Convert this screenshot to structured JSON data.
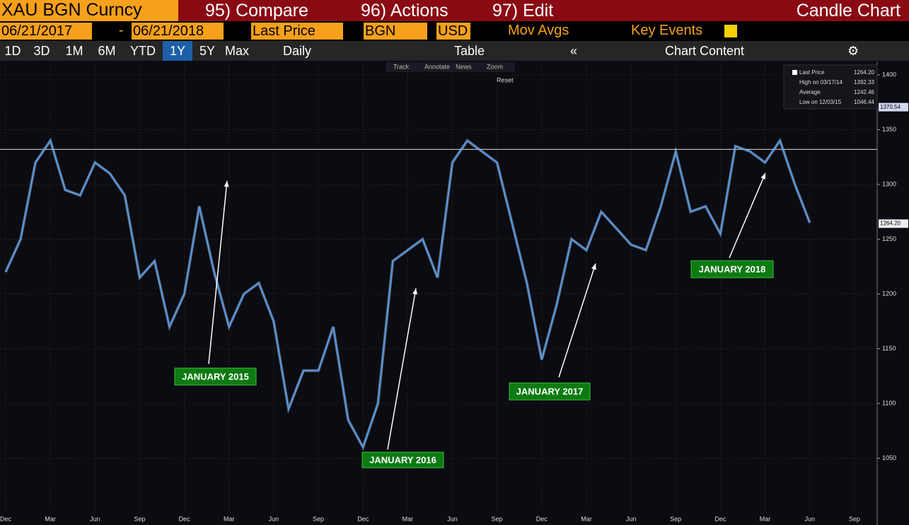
{
  "toolbar": {
    "security": "XAU BGN Curncy",
    "compare": "95) Compare",
    "actions": "96) Actions",
    "edit": "97) Edit",
    "chart_name": "Candle Chart"
  },
  "controls": {
    "start_date": "06/21/2017",
    "dash": "-",
    "end_date": "06/21/2018",
    "field": "Last Price",
    "source": "BGN",
    "currency": "USD",
    "mov_avgs": "Mov Avgs",
    "key_events": "Key Events"
  },
  "periods": [
    "1D",
    "3D",
    "1M",
    "6M",
    "YTD",
    "1Y",
    "5Y",
    "Max"
  ],
  "frequency": "Daily",
  "table": "Table",
  "chart_content": "Chart Content",
  "chart_tools": [
    "Track",
    "Annotate",
    "News",
    "Zoom"
  ],
  "reset": "Reset",
  "chart_data": {
    "type": "line",
    "categories": [
      "Dec",
      null,
      null,
      "Mar",
      null,
      null,
      "Jun",
      null,
      null,
      "Sep",
      null,
      null,
      "Dec",
      null,
      null,
      "Mar",
      null,
      null,
      "Jun",
      null,
      null,
      "Sep",
      null,
      null,
      "Dec",
      null,
      null,
      "Mar",
      null,
      null,
      "Jun",
      null,
      null,
      "Sep",
      null,
      null,
      "Dec",
      null,
      null,
      "Mar",
      null,
      null,
      "Jun",
      null,
      null,
      "Sep",
      null,
      null,
      "Dec",
      null,
      null,
      "Mar",
      null,
      null,
      "Jun",
      null,
      null,
      "Sep"
    ],
    "series": [
      {
        "name": "Last Price",
        "color": "#4f9bea",
        "values": [
          1220,
          1250,
          1320,
          1340,
          1295,
          1290,
          1320,
          1310,
          1290,
          1215,
          1230,
          1170,
          1200,
          1280,
          1220,
          1170,
          1200,
          1210,
          1175,
          1095,
          1130,
          1130,
          1170,
          1085,
          1060,
          1100,
          1230,
          1240,
          1250,
          1215,
          1320,
          1340,
          1330,
          1320,
          1265,
          1210,
          1140,
          1190,
          1250,
          1240,
          1275,
          1260,
          1245,
          1240,
          1280,
          1330,
          1275,
          1280,
          1255,
          1335,
          1330,
          1320,
          1340,
          1300,
          1265,
          null,
          null,
          null
        ]
      }
    ],
    "ylim": [
      1000,
      1412
    ],
    "yticks": [
      1050,
      1100,
      1150,
      1200,
      1250,
      1300,
      1350,
      1400
    ],
    "grid": true,
    "reference_lines": [
      1332
    ],
    "price_tags": [
      1370.54,
      {
        "value": 1264.2,
        "label": "1264.20"
      }
    ],
    "legend": [
      {
        "label": "Last Price",
        "value": "1264.20"
      },
      {
        "label": "High on 03/17/14",
        "value": "1392.33"
      },
      {
        "label": "Average",
        "value": "1242.46"
      },
      {
        "label": "Low on 12/03/15",
        "value": "1046.44"
      }
    ],
    "annotations": [
      "JANUARY 2015",
      "JANUARY 2016",
      "JANUARY 2017",
      "JANUARY 2018"
    ]
  }
}
